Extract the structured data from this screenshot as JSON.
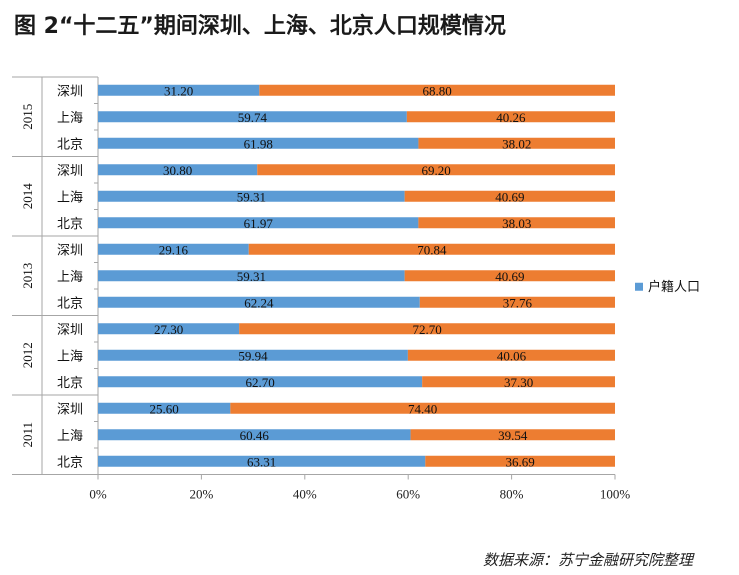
{
  "title": "图 2“十二五”期间深圳、上海、北京人口规模情况",
  "source": "数据来源：苏宁金融研究院整理",
  "chart_data": {
    "type": "bar",
    "orientation": "horizontal",
    "stacked": "percent",
    "xlim": [
      0,
      100
    ],
    "x_ticks": [
      "0%",
      "20%",
      "40%",
      "60%",
      "80%",
      "100%"
    ],
    "legend": {
      "position": "right",
      "entries": [
        "户籍人口"
      ]
    },
    "colors": {
      "户籍人口": "#5b9bd5",
      "非户籍人口": "#ed7d31"
    },
    "groups": [
      {
        "year": "2015",
        "rows": [
          {
            "city": "深圳",
            "values": [
              31.2,
              68.8
            ],
            "labels": [
              "31.20",
              "68.80"
            ]
          },
          {
            "city": "上海",
            "values": [
              59.74,
              40.26
            ],
            "labels": [
              "59.74",
              "40.26"
            ]
          },
          {
            "city": "北京",
            "values": [
              61.98,
              38.02
            ],
            "labels": [
              "61.98",
              "38.02"
            ]
          }
        ]
      },
      {
        "year": "2014",
        "rows": [
          {
            "city": "深圳",
            "values": [
              30.8,
              69.2
            ],
            "labels": [
              "30.80",
              "69.20"
            ]
          },
          {
            "city": "上海",
            "values": [
              59.31,
              40.69
            ],
            "labels": [
              "59.31",
              "40.69"
            ]
          },
          {
            "city": "北京",
            "values": [
              61.97,
              38.03
            ],
            "labels": [
              "61.97",
              "38.03"
            ]
          }
        ]
      },
      {
        "year": "2013",
        "rows": [
          {
            "city": "深圳",
            "values": [
              29.16,
              70.84
            ],
            "labels": [
              "29.16",
              "70.84"
            ]
          },
          {
            "city": "上海",
            "values": [
              59.31,
              40.69
            ],
            "labels": [
              "59.31",
              "40.69"
            ]
          },
          {
            "city": "北京",
            "values": [
              62.24,
              37.76
            ],
            "labels": [
              "62.24",
              "37.76"
            ]
          }
        ]
      },
      {
        "year": "2012",
        "rows": [
          {
            "city": "深圳",
            "values": [
              27.3,
              72.7
            ],
            "labels": [
              "27.30",
              "72.70"
            ]
          },
          {
            "city": "上海",
            "values": [
              59.94,
              40.06
            ],
            "labels": [
              "59.94",
              "40.06"
            ]
          },
          {
            "city": "北京",
            "values": [
              62.7,
              37.3
            ],
            "labels": [
              "62.70",
              "37.30"
            ]
          }
        ]
      },
      {
        "year": "2011",
        "rows": [
          {
            "city": "深圳",
            "values": [
              25.6,
              74.4
            ],
            "labels": [
              "25.60",
              "74.40"
            ]
          },
          {
            "city": "上海",
            "values": [
              60.46,
              39.54
            ],
            "labels": [
              "60.46",
              "39.54"
            ]
          },
          {
            "city": "北京",
            "values": [
              63.31,
              36.69
            ],
            "labels": [
              "63.31",
              "36.69"
            ]
          }
        ]
      }
    ]
  }
}
